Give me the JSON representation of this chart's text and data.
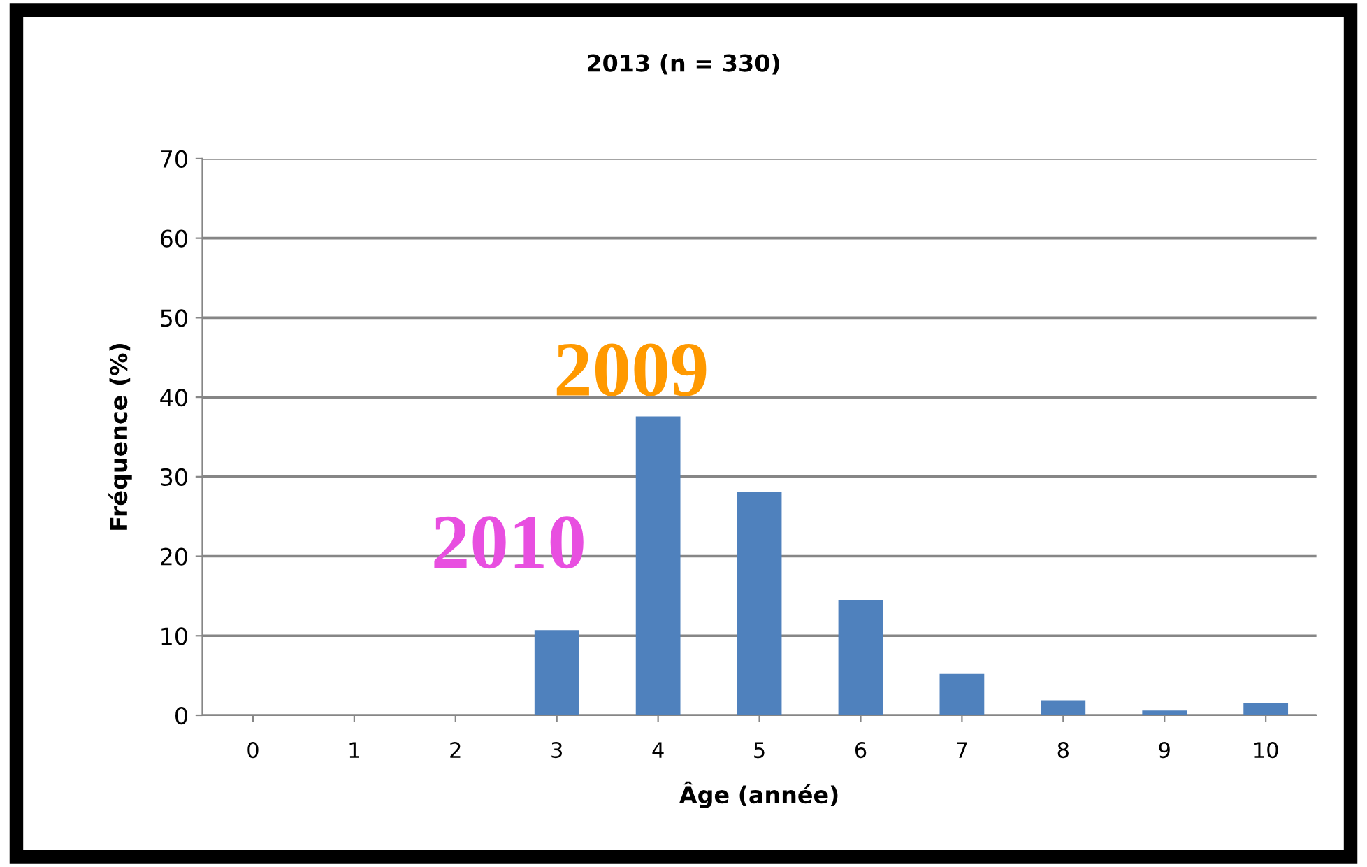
{
  "chart_data": {
    "type": "bar",
    "title": "2013 (n = 330)",
    "xlabel": "Âge (année)",
    "ylabel": "Fréquence (%)",
    "categories": [
      "0",
      "1",
      "2",
      "3",
      "4",
      "5",
      "6",
      "7",
      "8",
      "9",
      "10"
    ],
    "values": [
      0,
      0,
      0,
      10.7,
      37.6,
      28.1,
      14.5,
      5.2,
      1.9,
      0.6,
      1.5
    ],
    "color": "#4f81bd",
    "ylim": [
      0,
      70
    ],
    "yticks": [
      0,
      10,
      20,
      30,
      40,
      50,
      60,
      70
    ],
    "grid": "y",
    "annotations": [
      "2010",
      "2009"
    ]
  }
}
